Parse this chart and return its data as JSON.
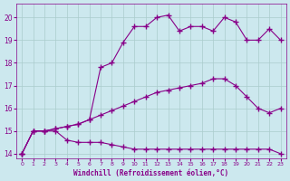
{
  "xlabel": "Windchill (Refroidissement éolien,°C)",
  "bg_color": "#cce8ee",
  "line_color": "#880088",
  "grid_color": "#aacccc",
  "xlim": [
    -0.5,
    23.5
  ],
  "ylim": [
    13.8,
    20.6
  ],
  "yticks": [
    14,
    15,
    16,
    17,
    18,
    19,
    20
  ],
  "xticks": [
    0,
    1,
    2,
    3,
    4,
    5,
    6,
    7,
    8,
    9,
    10,
    11,
    12,
    13,
    14,
    15,
    16,
    17,
    18,
    19,
    20,
    21,
    22,
    23
  ],
  "line1_x": [
    0,
    1,
    2,
    3,
    4,
    5,
    6,
    7,
    8,
    9,
    10,
    11,
    12,
    13,
    14,
    15,
    16,
    17,
    18,
    19,
    20,
    21,
    22,
    23
  ],
  "line1_y": [
    14.0,
    15.0,
    15.0,
    15.0,
    14.6,
    14.5,
    14.5,
    14.5,
    14.4,
    14.3,
    14.2,
    14.2,
    14.2,
    14.2,
    14.2,
    14.2,
    14.2,
    14.2,
    14.2,
    14.2,
    14.2,
    14.2,
    14.2,
    14.0
  ],
  "line2_x": [
    0,
    1,
    2,
    3,
    4,
    5,
    6,
    7,
    8,
    9,
    10,
    11,
    12,
    13,
    14,
    15,
    16,
    17,
    18,
    19,
    20,
    21,
    22,
    23
  ],
  "line2_y": [
    14.0,
    15.0,
    15.0,
    15.1,
    15.2,
    15.3,
    15.5,
    15.7,
    15.9,
    16.1,
    16.3,
    16.5,
    16.7,
    16.8,
    16.9,
    17.0,
    17.1,
    17.3,
    17.3,
    17.0,
    16.5,
    16.0,
    15.8,
    16.0
  ],
  "line3_x": [
    0,
    1,
    2,
    3,
    4,
    5,
    6,
    7,
    8,
    9,
    10,
    11,
    12,
    13,
    14,
    15,
    16,
    17,
    18,
    19,
    20,
    21,
    22,
    23
  ],
  "line3_y": [
    14.0,
    15.0,
    15.0,
    15.1,
    15.2,
    15.3,
    15.5,
    17.8,
    18.0,
    18.9,
    19.6,
    19.6,
    20.0,
    20.1,
    19.4,
    19.6,
    19.6,
    19.4,
    20.0,
    19.8,
    19.0,
    19.0,
    19.5,
    19.0
  ]
}
